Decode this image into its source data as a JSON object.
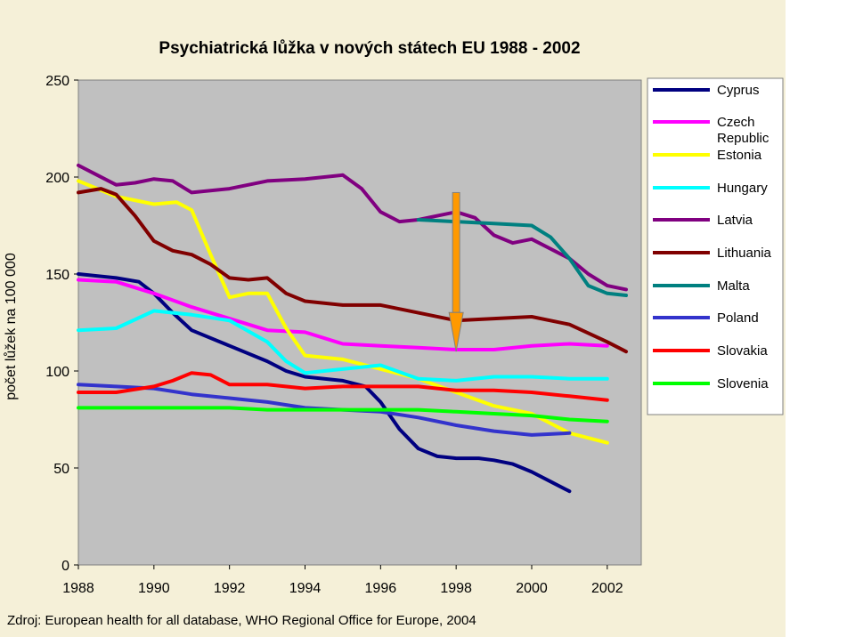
{
  "chart_data": {
    "type": "line",
    "title": "Psychiatrická lůžka v nových státech EU 1988 - 2002",
    "ylabel": "počet lůžek na 100 000",
    "xlabel": "",
    "ylim": [
      0,
      250
    ],
    "xlim": [
      1988,
      2002.9
    ],
    "x_ticks": [
      "1988",
      "1990",
      "1992",
      "1994",
      "1996",
      "1998",
      "2000",
      "2002"
    ],
    "y_ticks": [
      "0",
      "50",
      "100",
      "150",
      "200",
      "250"
    ],
    "grid": false,
    "legend_position": "right",
    "plot_background": "#c0c0c0",
    "outer_background": "#f5f0d8",
    "series": [
      {
        "name": "Cyprus",
        "color": "#000080",
        "points": [
          [
            1988,
            150
          ],
          [
            1989,
            148
          ],
          [
            1989.6,
            146
          ],
          [
            1990,
            140
          ],
          [
            1990.5,
            130
          ],
          [
            1991,
            121
          ],
          [
            1992,
            113
          ],
          [
            1993,
            105
          ],
          [
            1993.5,
            100
          ],
          [
            1994,
            97
          ],
          [
            1995,
            95
          ],
          [
            1995.6,
            92
          ],
          [
            1996,
            84
          ],
          [
            1996.5,
            70
          ],
          [
            1997,
            60
          ],
          [
            1997.5,
            56
          ],
          [
            1998,
            55
          ],
          [
            1998.6,
            55
          ],
          [
            1999,
            54
          ],
          [
            1999.5,
            52
          ],
          [
            2000,
            48
          ],
          [
            2000.5,
            43
          ],
          [
            2001,
            38
          ]
        ]
      },
      {
        "name": "Czech Republic",
        "color": "#ff00ff",
        "points": [
          [
            1988,
            147
          ],
          [
            1989,
            146
          ],
          [
            1990,
            140
          ],
          [
            1991,
            133
          ],
          [
            1992,
            127
          ],
          [
            1993,
            121
          ],
          [
            1994,
            120
          ],
          [
            1995,
            114
          ],
          [
            1996,
            113
          ],
          [
            1997,
            112
          ],
          [
            1998,
            111
          ],
          [
            1999,
            111
          ],
          [
            2000,
            113
          ],
          [
            2001,
            114
          ],
          [
            2002,
            113
          ]
        ]
      },
      {
        "name": "Estonia",
        "color": "#ffff00",
        "points": [
          [
            1988,
            198
          ],
          [
            1989,
            190
          ],
          [
            1990,
            186
          ],
          [
            1990.6,
            187
          ],
          [
            1991,
            183
          ],
          [
            1991.5,
            160
          ],
          [
            1992,
            138
          ],
          [
            1992.5,
            140
          ],
          [
            1993,
            140
          ],
          [
            1993.5,
            122
          ],
          [
            1994,
            108
          ],
          [
            1995,
            106
          ],
          [
            1996,
            101
          ],
          [
            1997,
            96
          ],
          [
            1998,
            89
          ],
          [
            1999,
            82
          ],
          [
            2000,
            78
          ],
          [
            2001,
            68
          ],
          [
            2002,
            63
          ]
        ]
      },
      {
        "name": "Hungary",
        "color": "#00ffff",
        "points": [
          [
            1988,
            121
          ],
          [
            1989,
            122
          ],
          [
            1990,
            131
          ],
          [
            1991,
            129
          ],
          [
            1992,
            126
          ],
          [
            1993,
            115
          ],
          [
            1993.5,
            105
          ],
          [
            1994,
            99
          ],
          [
            1996,
            103
          ],
          [
            1997,
            96
          ],
          [
            1998,
            95
          ],
          [
            1999,
            97
          ],
          [
            2000,
            97
          ],
          [
            2001,
            96
          ],
          [
            2002,
            96
          ]
        ]
      },
      {
        "name": "Latvia",
        "color": "#800080",
        "points": [
          [
            1988,
            206
          ],
          [
            1988.5,
            201
          ],
          [
            1989,
            196
          ],
          [
            1989.5,
            197
          ],
          [
            1990,
            199
          ],
          [
            1990.5,
            198
          ],
          [
            1991,
            192
          ],
          [
            1992,
            194
          ],
          [
            1993,
            198
          ],
          [
            1994,
            199
          ],
          [
            1995,
            201
          ],
          [
            1995.5,
            194
          ],
          [
            1996,
            182
          ],
          [
            1996.5,
            177
          ],
          [
            1997,
            178
          ],
          [
            1997.5,
            180
          ],
          [
            1998,
            182
          ],
          [
            1998.5,
            179
          ],
          [
            1999,
            170
          ],
          [
            1999.5,
            166
          ],
          [
            2000,
            168
          ],
          [
            2001,
            158
          ],
          [
            2001.5,
            150
          ],
          [
            2002,
            144
          ],
          [
            2002.5,
            142
          ]
        ]
      },
      {
        "name": "Lithuania",
        "color": "#800000",
        "points": [
          [
            1988,
            192
          ],
          [
            1988.6,
            194
          ],
          [
            1989,
            191
          ],
          [
            1989.5,
            180
          ],
          [
            1990,
            167
          ],
          [
            1990.5,
            162
          ],
          [
            1991,
            160
          ],
          [
            1991.5,
            155
          ],
          [
            1992,
            148
          ],
          [
            1992.5,
            147
          ],
          [
            1993,
            148
          ],
          [
            1993.5,
            140
          ],
          [
            1994,
            136
          ],
          [
            1995,
            134
          ],
          [
            1996,
            134
          ],
          [
            1997,
            130
          ],
          [
            1998,
            126
          ],
          [
            1999,
            127
          ],
          [
            2000,
            128
          ],
          [
            2001,
            124
          ],
          [
            2002,
            115
          ],
          [
            2002.5,
            110
          ]
        ]
      },
      {
        "name": "Malta",
        "color": "#008080",
        "points": [
          [
            1997,
            178
          ],
          [
            1998,
            177
          ],
          [
            1999,
            176
          ],
          [
            2000,
            175
          ],
          [
            2000.5,
            169
          ],
          [
            2001,
            158
          ],
          [
            2001.5,
            144
          ],
          [
            2002,
            140
          ],
          [
            2002.5,
            139
          ]
        ]
      },
      {
        "name": "Poland",
        "color": "#3333cc",
        "points": [
          [
            1988,
            93
          ],
          [
            1989,
            92
          ],
          [
            1990,
            91
          ],
          [
            1991,
            88
          ],
          [
            1992,
            86
          ],
          [
            1993,
            84
          ],
          [
            1994,
            81
          ],
          [
            1995,
            80
          ],
          [
            1996,
            79
          ],
          [
            1997,
            76
          ],
          [
            1998,
            72
          ],
          [
            1999,
            69
          ],
          [
            2000,
            67
          ],
          [
            2001,
            68
          ]
        ]
      },
      {
        "name": "Slovakia",
        "color": "#ff0000",
        "points": [
          [
            1988,
            89
          ],
          [
            1989,
            89
          ],
          [
            1990,
            92
          ],
          [
            1990.5,
            95
          ],
          [
            1991,
            99
          ],
          [
            1991.5,
            98
          ],
          [
            1992,
            93
          ],
          [
            1993,
            93
          ],
          [
            1994,
            91
          ],
          [
            1995,
            92
          ],
          [
            1996,
            92
          ],
          [
            1997,
            92
          ],
          [
            1998,
            90
          ],
          [
            1999,
            90
          ],
          [
            2000,
            89
          ],
          [
            2001,
            87
          ],
          [
            2002,
            85
          ]
        ]
      },
      {
        "name": "Slovenia",
        "color": "#00ff00",
        "points": [
          [
            1988,
            81
          ],
          [
            1989,
            81
          ],
          [
            1990,
            81
          ],
          [
            1991,
            81
          ],
          [
            1992,
            81
          ],
          [
            1993,
            80
          ],
          [
            1994,
            80
          ],
          [
            1995,
            80
          ],
          [
            1996,
            80
          ],
          [
            1997,
            80
          ],
          [
            1998,
            79
          ],
          [
            1999,
            78
          ],
          [
            2000,
            77
          ],
          [
            2001,
            75
          ],
          [
            2002,
            74
          ]
        ]
      }
    ],
    "annotations": [
      {
        "type": "arrow",
        "color": "#ff9900",
        "x": 1998,
        "from": 192,
        "to": 110
      }
    ]
  },
  "source_text": "Zdroj: European health for all database, WHO Regional Office for Europe, 2004"
}
